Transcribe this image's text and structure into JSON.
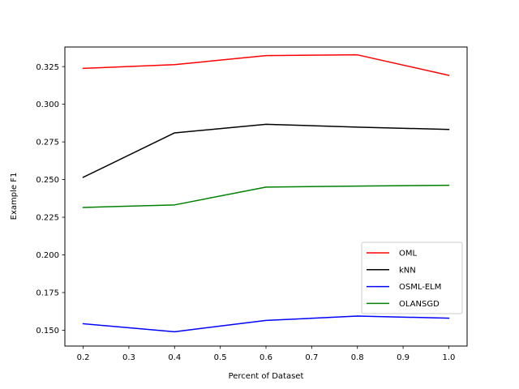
{
  "chart_data": {
    "type": "line",
    "title": "",
    "xlabel": "Percent of Dataset",
    "ylabel": "Example F1",
    "x": [
      0.2,
      0.4,
      0.6,
      0.8,
      1.0
    ],
    "xlim": [
      0.16,
      1.04
    ],
    "ylim": [
      0.1395,
      0.338
    ],
    "xticks": [
      0.2,
      0.3,
      0.4,
      0.5,
      0.6,
      0.7,
      0.8,
      0.9,
      1.0
    ],
    "xtick_labels": [
      "0.2",
      "0.3",
      "0.4",
      "0.5",
      "0.6",
      "0.7",
      "0.8",
      "0.9",
      "1.0"
    ],
    "yticks": [
      0.15,
      0.175,
      0.2,
      0.225,
      0.25,
      0.275,
      0.3,
      0.325
    ],
    "ytick_labels": [
      "0.150",
      "0.175",
      "0.200",
      "0.225",
      "0.250",
      "0.275",
      "0.300",
      "0.325"
    ],
    "grid": false,
    "legend_position": "lower-right",
    "series": [
      {
        "name": "OML",
        "color": "#ff0000",
        "values": [
          0.3238,
          0.3263,
          0.3323,
          0.3328,
          0.3192
        ]
      },
      {
        "name": "kNN",
        "color": "#000000",
        "values": [
          0.2515,
          0.281,
          0.2867,
          0.2848,
          0.2833
        ]
      },
      {
        "name": "OSML-ELM",
        "color": "#0000ff",
        "values": [
          0.1543,
          0.149,
          0.1565,
          0.1594,
          0.158
        ]
      },
      {
        "name": "OLANSGD",
        "color": "#008000",
        "values": [
          0.2315,
          0.2332,
          0.245,
          0.2457,
          0.2462
        ]
      }
    ]
  }
}
